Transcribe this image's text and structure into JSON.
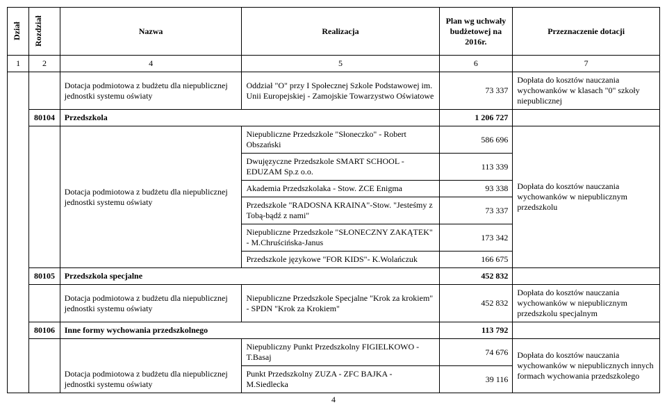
{
  "header": {
    "dzial": "Dział",
    "rozdzial": "Rozdział",
    "nazwa": "Nazwa",
    "realizacja": "Realizacja",
    "plan": "Plan wg uchwały budżetowej na 2016r.",
    "przeznaczenie": "Przeznaczenie dotacji"
  },
  "numrow": {
    "c1": "1",
    "c2": "2",
    "c3": "4",
    "c4": "5",
    "c5": "6",
    "c6": "7"
  },
  "r1": {
    "nazwa": "Dotacja podmiotowa z budżetu dla niepublicznej jednostki systemu oświaty",
    "realizacja": "Oddział \"O\" przy I Społecznej Szkole Podstawowej im. Unii Europejskiej - Zamojskie Towarzystwo Oświatowe",
    "plan": "73 337",
    "przez": "Dopłata do kosztów nauczania wychowanków w klasach \"0\" szkoły niepublicznej"
  },
  "s80104": {
    "code": "80104",
    "label": "Przedszkola",
    "sum": "1 206 727"
  },
  "r2a": {
    "realizacja": "Niepubliczne Przedszkole \"Słoneczko\" - Robert Obszański",
    "plan": "586 696"
  },
  "r2b": {
    "realizacja": "Dwujęzyczne Przedszkole SMART SCHOOL - EDUZAM Sp.z o.o.",
    "plan": "113 339"
  },
  "r2c": {
    "realizacja": "Akademia Przedszkolaka - Stow. ZCE Enigma",
    "plan": "93 338"
  },
  "r2d": {
    "nazwa": "Dotacja podmiotowa z budżetu dla niepublicznej jednostki systemu oświaty",
    "realizacja": "Przedszkole \"RADOSNA KRAINA\"-Stow. \"Jesteśmy z Tobą-bądź z nami\"",
    "plan": "73 337",
    "przez": "Dopłata do kosztów nauczania wychowanków w niepublicznym przedszkolu"
  },
  "r2e": {
    "realizacja": "Niepubliczne Przedszkole \"SŁONECZNY ZAKĄTEK\" - M.Chruścińska-Janus",
    "plan": "173 342"
  },
  "r2f": {
    "realizacja": "Przedszkole językowe \"FOR KIDS\"- K.Wolańczuk",
    "plan": "166 675"
  },
  "s80105": {
    "code": "80105",
    "label": "Przedszkola specjalne",
    "sum": "452 832"
  },
  "r3": {
    "nazwa": "Dotacja podmiotowa z budżetu dla niepublicznej jednostki systemu oświaty",
    "realizacja": "Niepubliczne Przedszkole Specjalne \"Krok za krokiem\" - SPDN \"Krok za Krokiem\"",
    "plan": "452 832",
    "przez": "Dopłata do kosztów nauczania wychowanków w niepublicznym przedszkolu specjalnym"
  },
  "s80106": {
    "code": "80106",
    "label": "Inne formy wychowania przedszkolnego",
    "sum": "113 792"
  },
  "r4a": {
    "realizacja": "Niepubliczny Punkt Przedszkolny FIGIELKOWO - T.Basaj",
    "plan": "74 676",
    "przez": "Dopłata do kosztów nauczania wychowanków w niepublicznych innych formach wychowania przedszkolego"
  },
  "r4b": {
    "nazwa": "Dotacja podmiotowa z budżetu dla niepublicznej jednostki systemu oświaty",
    "realizacja": "Punkt Przedszkolny ZUZA - ZFC BAJKA - M.Siedlecka",
    "plan": "39 116"
  },
  "pagenum": "4"
}
